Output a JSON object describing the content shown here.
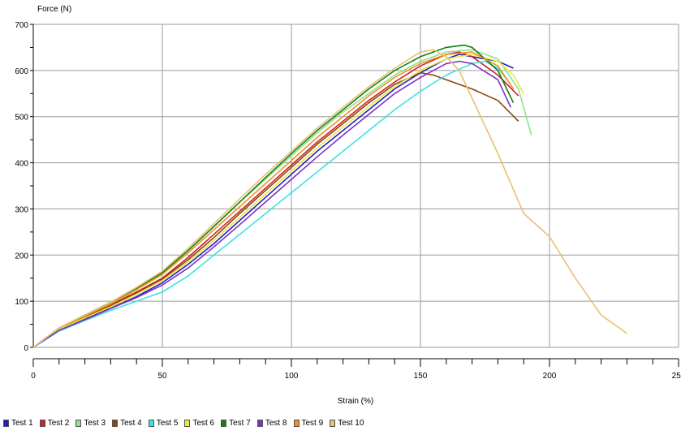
{
  "chart_data": {
    "type": "line",
    "xlabel": "Strain (%)",
    "ylabel": "Force (N)",
    "xlim": [
      0,
      250
    ],
    "ylim": [
      0,
      700
    ],
    "x_ticks": [
      0,
      50,
      100,
      150,
      200,
      250
    ],
    "y_ticks": [
      0,
      100,
      200,
      300,
      400,
      500,
      600,
      700
    ],
    "grid": true,
    "legend_position": "bottom",
    "series": [
      {
        "name": "Test 1",
        "color": "#2020c8",
        "x": [
          0,
          10,
          20,
          30,
          40,
          50,
          60,
          70,
          80,
          90,
          100,
          110,
          120,
          130,
          140,
          150,
          160,
          165,
          170,
          180,
          186
        ],
        "y": [
          0,
          38,
          62,
          85,
          110,
          140,
          180,
          225,
          275,
          325,
          375,
          425,
          470,
          515,
          560,
          595,
          625,
          635,
          630,
          620,
          605
        ]
      },
      {
        "name": "Test 2",
        "color": "#d02020",
        "x": [
          0,
          10,
          20,
          30,
          40,
          50,
          60,
          70,
          80,
          90,
          100,
          110,
          120,
          130,
          140,
          150,
          160,
          165,
          170,
          180,
          188
        ],
        "y": [
          0,
          40,
          66,
          92,
          120,
          150,
          195,
          245,
          295,
          345,
          395,
          445,
          490,
          535,
          575,
          610,
          635,
          640,
          630,
          590,
          545
        ]
      },
      {
        "name": "Test 3",
        "color": "#90e090",
        "x": [
          0,
          10,
          20,
          30,
          40,
          50,
          60,
          70,
          80,
          90,
          100,
          110,
          120,
          130,
          140,
          150,
          160,
          170,
          180,
          188,
          193
        ],
        "y": [
          0,
          41,
          68,
          95,
          125,
          160,
          210,
          262,
          315,
          365,
          415,
          465,
          510,
          550,
          590,
          620,
          640,
          645,
          625,
          560,
          460
        ]
      },
      {
        "name": "Test 4",
        "color": "#8b4513",
        "x": [
          0,
          10,
          20,
          30,
          40,
          50,
          60,
          70,
          80,
          90,
          100,
          110,
          120,
          130,
          140,
          150,
          155,
          160,
          170,
          180,
          188
        ],
        "y": [
          0,
          40,
          66,
          90,
          118,
          148,
          190,
          238,
          290,
          340,
          390,
          440,
          485,
          530,
          570,
          595,
          590,
          580,
          560,
          535,
          490
        ]
      },
      {
        "name": "Test 5",
        "color": "#40e0e0",
        "x": [
          0,
          10,
          20,
          30,
          40,
          50,
          60,
          70,
          80,
          90,
          100,
          110,
          120,
          130,
          140,
          150,
          160,
          170,
          175,
          180,
          185
        ],
        "y": [
          0,
          35,
          58,
          80,
          100,
          120,
          155,
          200,
          245,
          290,
          335,
          380,
          425,
          470,
          515,
          555,
          590,
          615,
          620,
          605,
          570
        ]
      },
      {
        "name": "Test 6",
        "color": "#e8e840",
        "x": [
          0,
          10,
          20,
          30,
          40,
          50,
          60,
          70,
          80,
          90,
          100,
          110,
          120,
          130,
          140,
          150,
          160,
          170,
          180,
          186,
          190
        ],
        "y": [
          0,
          39,
          64,
          88,
          115,
          145,
          185,
          232,
          282,
          332,
          382,
          432,
          478,
          522,
          565,
          600,
          625,
          635,
          620,
          590,
          550
        ]
      },
      {
        "name": "Test 7",
        "color": "#108010",
        "x": [
          0,
          10,
          20,
          30,
          40,
          50,
          60,
          70,
          80,
          90,
          100,
          110,
          120,
          130,
          140,
          150,
          160,
          167,
          170,
          180,
          186
        ],
        "y": [
          0,
          42,
          70,
          98,
          128,
          162,
          210,
          262,
          315,
          368,
          420,
          470,
          515,
          560,
          600,
          630,
          650,
          655,
          650,
          600,
          530
        ]
      },
      {
        "name": "Test 8",
        "color": "#8030c0",
        "x": [
          0,
          10,
          20,
          30,
          40,
          50,
          60,
          70,
          80,
          90,
          100,
          110,
          120,
          130,
          140,
          150,
          160,
          165,
          170,
          180,
          185
        ],
        "y": [
          0,
          37,
          60,
          84,
          108,
          135,
          172,
          218,
          266,
          315,
          364,
          413,
          460,
          505,
          550,
          585,
          615,
          620,
          615,
          580,
          520
        ]
      },
      {
        "name": "Test 9",
        "color": "#f09020",
        "x": [
          0,
          10,
          20,
          30,
          40,
          50,
          60,
          70,
          80,
          90,
          100,
          110,
          120,
          130,
          140,
          150,
          160,
          170,
          180,
          186
        ],
        "y": [
          0,
          42,
          68,
          94,
          125,
          158,
          205,
          255,
          305,
          355,
          405,
          455,
          500,
          545,
          585,
          615,
          635,
          640,
          610,
          560
        ]
      },
      {
        "name": "Test 10",
        "color": "#e8c070",
        "x": [
          0,
          10,
          20,
          30,
          40,
          50,
          60,
          70,
          80,
          90,
          100,
          110,
          120,
          130,
          140,
          150,
          155,
          160,
          165,
          170,
          180,
          190,
          200,
          210,
          220,
          230
        ],
        "y": [
          0,
          42,
          70,
          98,
          130,
          165,
          215,
          268,
          322,
          375,
          425,
          475,
          520,
          565,
          605,
          640,
          645,
          630,
          600,
          540,
          420,
          290,
          240,
          150,
          70,
          30
        ]
      }
    ]
  }
}
